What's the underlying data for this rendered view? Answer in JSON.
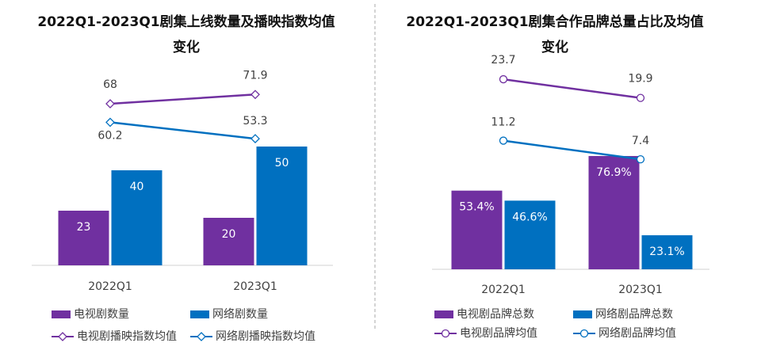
{
  "chart_data": [
    {
      "type": "bar",
      "title": "2022Q1-2023Q1剧集上线数量及播映指数均值变化",
      "categories": [
        "2022Q1",
        "2023Q1"
      ],
      "series": [
        {
          "name": "电视剧数量",
          "type": "bar",
          "color": "#7030a0",
          "values": [
            23,
            20
          ]
        },
        {
          "name": "网络剧数量",
          "type": "bar",
          "color": "#0070c0",
          "values": [
            40,
            50
          ]
        },
        {
          "name": "电视剧播映指数均值",
          "type": "line",
          "marker": "diamond",
          "color": "#7030a0",
          "values": [
            68,
            71.9
          ]
        },
        {
          "name": "网络剧播映指数均值",
          "type": "line",
          "marker": "diamond",
          "color": "#0070c0",
          "values": [
            60.2,
            53.3
          ]
        }
      ]
    },
    {
      "type": "bar",
      "title": "2022Q1-2023Q1剧集合作品牌总量占比及均值变化",
      "categories": [
        "2022Q1",
        "2023Q1"
      ],
      "series": [
        {
          "name": "电视剧品牌总数",
          "type": "bar",
          "color": "#7030a0",
          "values": [
            53.4,
            76.9
          ],
          "value_labels": [
            "53.4%",
            "76.9%"
          ]
        },
        {
          "name": "网络剧品牌总数",
          "type": "bar",
          "color": "#0070c0",
          "values": [
            46.6,
            23.1
          ],
          "value_labels": [
            "46.6%",
            "23.1%"
          ]
        },
        {
          "name": "电视剧品牌均值",
          "type": "line",
          "marker": "circle",
          "axis": "y2",
          "color": "#7030a0",
          "values": [
            23.7,
            19.9
          ]
        },
        {
          "name": "网络剧品牌均值",
          "type": "line",
          "marker": "circle",
          "axis": "y2",
          "color": "#0070c0",
          "values": [
            11.2,
            7.4
          ]
        }
      ]
    }
  ]
}
